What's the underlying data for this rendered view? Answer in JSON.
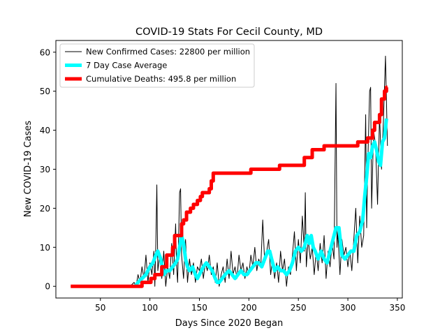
{
  "chart_data": {
    "type": "line",
    "title": "COVID-19 Stats For Cecil County, MD",
    "xlabel": "Days Since 2020 Began",
    "ylabel": "New COVID-19 Cases",
    "xlim": [
      5,
      355
    ],
    "ylim": [
      -3,
      63
    ],
    "xticks": [
      50,
      100,
      150,
      200,
      250,
      300,
      350
    ],
    "yticks": [
      0,
      10,
      20,
      30,
      40,
      50,
      60
    ],
    "grid": false,
    "legend_position": "top-left",
    "series": [
      {
        "name": "New Confirmed Cases: 22800 per million",
        "color": "#000000",
        "width": 1,
        "points": [
          [
            20,
            0
          ],
          [
            80,
            0
          ],
          [
            84,
            1
          ],
          [
            86,
            0
          ],
          [
            88,
            3
          ],
          [
            90,
            1
          ],
          [
            92,
            5
          ],
          [
            94,
            2
          ],
          [
            96,
            8
          ],
          [
            98,
            1
          ],
          [
            100,
            6
          ],
          [
            102,
            3
          ],
          [
            104,
            9
          ],
          [
            105,
            0
          ],
          [
            106,
            11
          ],
          [
            107,
            26
          ],
          [
            108,
            4
          ],
          [
            110,
            8
          ],
          [
            112,
            2
          ],
          [
            114,
            9
          ],
          [
            116,
            0
          ],
          [
            118,
            5
          ],
          [
            120,
            2
          ],
          [
            122,
            11
          ],
          [
            124,
            3
          ],
          [
            126,
            16
          ],
          [
            127,
            5
          ],
          [
            128,
            1
          ],
          [
            130,
            24
          ],
          [
            131,
            25
          ],
          [
            132,
            8
          ],
          [
            134,
            2
          ],
          [
            136,
            12
          ],
          [
            138,
            1
          ],
          [
            140,
            7
          ],
          [
            142,
            3
          ],
          [
            144,
            6
          ],
          [
            146,
            1
          ],
          [
            148,
            5
          ],
          [
            150,
            4
          ],
          [
            152,
            7
          ],
          [
            154,
            2
          ],
          [
            156,
            6
          ],
          [
            158,
            4
          ],
          [
            160,
            8
          ],
          [
            162,
            3
          ],
          [
            164,
            5
          ],
          [
            166,
            1
          ],
          [
            168,
            6
          ],
          [
            170,
            0
          ],
          [
            172,
            3
          ],
          [
            174,
            5
          ],
          [
            176,
            1
          ],
          [
            178,
            7
          ],
          [
            180,
            2
          ],
          [
            182,
            9
          ],
          [
            184,
            3
          ],
          [
            186,
            5
          ],
          [
            188,
            2
          ],
          [
            190,
            8
          ],
          [
            192,
            4
          ],
          [
            194,
            6
          ],
          [
            196,
            2
          ],
          [
            198,
            5
          ],
          [
            200,
            3
          ],
          [
            202,
            8
          ],
          [
            204,
            5
          ],
          [
            206,
            10
          ],
          [
            208,
            4
          ],
          [
            210,
            7
          ],
          [
            212,
            5
          ],
          [
            214,
            17
          ],
          [
            216,
            6
          ],
          [
            218,
            9
          ],
          [
            220,
            12
          ],
          [
            222,
            3
          ],
          [
            224,
            7
          ],
          [
            226,
            2
          ],
          [
            228,
            6
          ],
          [
            230,
            1
          ],
          [
            232,
            9
          ],
          [
            234,
            4
          ],
          [
            236,
            7
          ],
          [
            238,
            0
          ],
          [
            240,
            5
          ],
          [
            242,
            3
          ],
          [
            244,
            8
          ],
          [
            246,
            14
          ],
          [
            248,
            4
          ],
          [
            250,
            12
          ],
          [
            252,
            6
          ],
          [
            254,
            18
          ],
          [
            256,
            9
          ],
          [
            257,
            24
          ],
          [
            258,
            5
          ],
          [
            260,
            12
          ],
          [
            262,
            7
          ],
          [
            264,
            10
          ],
          [
            266,
            3
          ],
          [
            268,
            9
          ],
          [
            270,
            4
          ],
          [
            272,
            11
          ],
          [
            274,
            6
          ],
          [
            276,
            13
          ],
          [
            278,
            2
          ],
          [
            280,
            9
          ],
          [
            282,
            5
          ],
          [
            284,
            11
          ],
          [
            286,
            7
          ],
          [
            288,
            52
          ],
          [
            289,
            10
          ],
          [
            290,
            14
          ],
          [
            292,
            3
          ],
          [
            294,
            12
          ],
          [
            296,
            8
          ],
          [
            298,
            10
          ],
          [
            300,
            5
          ],
          [
            302,
            9
          ],
          [
            304,
            4
          ],
          [
            306,
            12
          ],
          [
            308,
            20
          ],
          [
            310,
            6
          ],
          [
            312,
            18
          ],
          [
            314,
            10
          ],
          [
            316,
            13
          ],
          [
            318,
            44
          ],
          [
            319,
            15
          ],
          [
            320,
            30
          ],
          [
            322,
            50
          ],
          [
            323,
            51
          ],
          [
            324,
            20
          ],
          [
            326,
            40
          ],
          [
            328,
            36
          ],
          [
            330,
            21
          ],
          [
            332,
            44
          ],
          [
            334,
            30
          ],
          [
            336,
            43
          ],
          [
            338,
            59
          ],
          [
            340,
            36
          ]
        ]
      },
      {
        "name": "7 Day Case Average",
        "color": "#00ffff",
        "width": 5,
        "points": [
          [
            85,
            0
          ],
          [
            88,
            1
          ],
          [
            92,
            2
          ],
          [
            96,
            3
          ],
          [
            100,
            5
          ],
          [
            103,
            6
          ],
          [
            106,
            8
          ],
          [
            108,
            9
          ],
          [
            111,
            7
          ],
          [
            114,
            3
          ],
          [
            117,
            4
          ],
          [
            120,
            4
          ],
          [
            123,
            5
          ],
          [
            126,
            6
          ],
          [
            128,
            7
          ],
          [
            130,
            10
          ],
          [
            132,
            13
          ],
          [
            134,
            11
          ],
          [
            136,
            7
          ],
          [
            138,
            5
          ],
          [
            140,
            4
          ],
          [
            143,
            5
          ],
          [
            146,
            3
          ],
          [
            148,
            2
          ],
          [
            150,
            3
          ],
          [
            152,
            4
          ],
          [
            154,
            5
          ],
          [
            157,
            6
          ],
          [
            160,
            5
          ],
          [
            163,
            4
          ],
          [
            166,
            2
          ],
          [
            168,
            1
          ],
          [
            170,
            1
          ],
          [
            173,
            2
          ],
          [
            176,
            3
          ],
          [
            180,
            4
          ],
          [
            183,
            3
          ],
          [
            186,
            2
          ],
          [
            189,
            3
          ],
          [
            192,
            4
          ],
          [
            195,
            3
          ],
          [
            198,
            3
          ],
          [
            201,
            4
          ],
          [
            204,
            5
          ],
          [
            207,
            6
          ],
          [
            210,
            6
          ],
          [
            213,
            5
          ],
          [
            216,
            7
          ],
          [
            219,
            9
          ],
          [
            221,
            9
          ],
          [
            223,
            7
          ],
          [
            226,
            4
          ],
          [
            229,
            5
          ],
          [
            232,
            4
          ],
          [
            235,
            4
          ],
          [
            238,
            3
          ],
          [
            241,
            4
          ],
          [
            244,
            6
          ],
          [
            247,
            9
          ],
          [
            250,
            10
          ],
          [
            253,
            9
          ],
          [
            256,
            10
          ],
          [
            259,
            13
          ],
          [
            261,
            11
          ],
          [
            263,
            13
          ],
          [
            265,
            10
          ],
          [
            267,
            9
          ],
          [
            270,
            7
          ],
          [
            273,
            9
          ],
          [
            276,
            7
          ],
          [
            279,
            6
          ],
          [
            282,
            9
          ],
          [
            285,
            12
          ],
          [
            288,
            15
          ],
          [
            291,
            15
          ],
          [
            294,
            8
          ],
          [
            297,
            7
          ],
          [
            300,
            8
          ],
          [
            303,
            9
          ],
          [
            306,
            9
          ],
          [
            309,
            13
          ],
          [
            312,
            14
          ],
          [
            315,
            17
          ],
          [
            317,
            23
          ],
          [
            319,
            28
          ],
          [
            321,
            34
          ],
          [
            323,
            33
          ],
          [
            325,
            36
          ],
          [
            327,
            37
          ],
          [
            329,
            35
          ],
          [
            331,
            32
          ],
          [
            333,
            31
          ],
          [
            335,
            37
          ],
          [
            337,
            38
          ],
          [
            339,
            43
          ]
        ]
      },
      {
        "name": "Cumulative Deaths: 495.8 per million",
        "color": "#ff0000",
        "width": 5,
        "points": [
          [
            20,
            0
          ],
          [
            92,
            0
          ],
          [
            92,
            1
          ],
          [
            101,
            1
          ],
          [
            101,
            2
          ],
          [
            105,
            2
          ],
          [
            105,
            3
          ],
          [
            112,
            3
          ],
          [
            112,
            5
          ],
          [
            117,
            5
          ],
          [
            117,
            8
          ],
          [
            123,
            8
          ],
          [
            123,
            10
          ],
          [
            125,
            10
          ],
          [
            125,
            13
          ],
          [
            132,
            13
          ],
          [
            132,
            16
          ],
          [
            134,
            16
          ],
          [
            134,
            17
          ],
          [
            137,
            17
          ],
          [
            137,
            19
          ],
          [
            141,
            19
          ],
          [
            141,
            20
          ],
          [
            144,
            20
          ],
          [
            144,
            21
          ],
          [
            148,
            21
          ],
          [
            148,
            22
          ],
          [
            151,
            22
          ],
          [
            151,
            23
          ],
          [
            153,
            23
          ],
          [
            153,
            24
          ],
          [
            160,
            24
          ],
          [
            160,
            25
          ],
          [
            162,
            25
          ],
          [
            162,
            27
          ],
          [
            164,
            27
          ],
          [
            164,
            29
          ],
          [
            202,
            29
          ],
          [
            202,
            30
          ],
          [
            231,
            30
          ],
          [
            231,
            31
          ],
          [
            256,
            31
          ],
          [
            256,
            33
          ],
          [
            264,
            33
          ],
          [
            264,
            35
          ],
          [
            276,
            35
          ],
          [
            276,
            36
          ],
          [
            310,
            36
          ],
          [
            310,
            37
          ],
          [
            320,
            37
          ],
          [
            320,
            38
          ],
          [
            325,
            38
          ],
          [
            325,
            40
          ],
          [
            327,
            40
          ],
          [
            327,
            42
          ],
          [
            332,
            42
          ],
          [
            332,
            44
          ],
          [
            334,
            44
          ],
          [
            334,
            48
          ],
          [
            337,
            48
          ],
          [
            337,
            50
          ],
          [
            339,
            50
          ],
          [
            339,
            51
          ],
          [
            340,
            51
          ]
        ]
      }
    ]
  }
}
